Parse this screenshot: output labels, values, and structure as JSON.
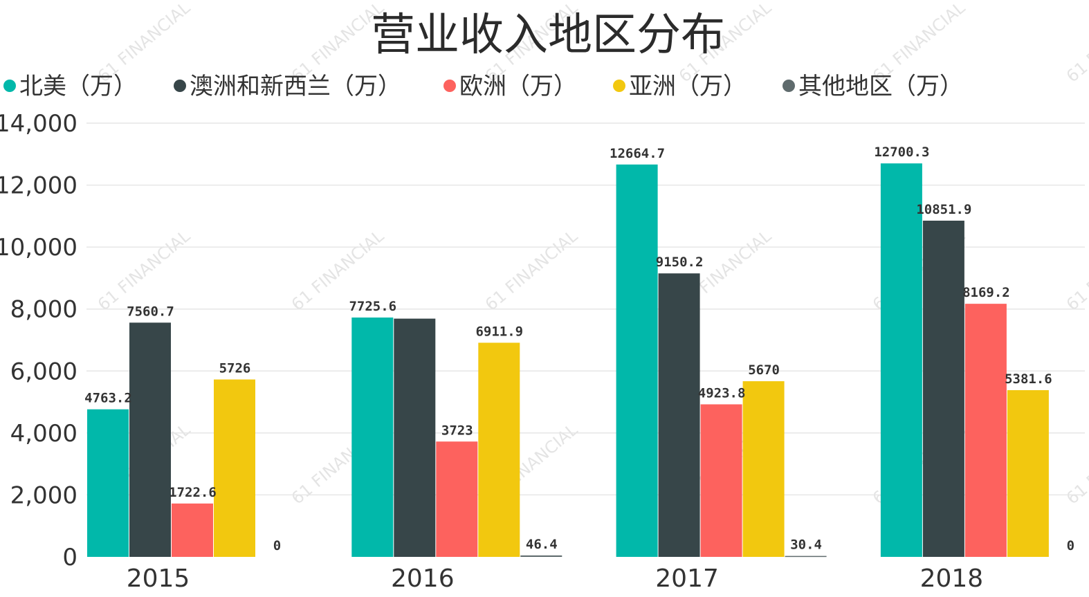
{
  "chart_data": {
    "type": "bar",
    "title": "营业收入地区分布",
    "watermark": "61 FINANCIAL",
    "categories": [
      "2015",
      "2016",
      "2017",
      "2018"
    ],
    "ylim": [
      0,
      14000
    ],
    "yticks": [
      "0",
      "2,000",
      "4,000",
      "6,000",
      "8,000",
      "10,000",
      "12,000",
      "14,000"
    ],
    "ytick_values": [
      0,
      2000,
      4000,
      6000,
      8000,
      10000,
      12000,
      14000
    ],
    "grid": true,
    "legend_position": "top",
    "series": [
      {
        "name": "北美（万）",
        "color": "#01b8aa",
        "values": [
          4763.2,
          7725.6,
          12664.7,
          12700.3
        ],
        "labels": [
          "4763.2",
          "7725.6",
          "12664.7",
          "12700.3"
        ]
      },
      {
        "name": "澳洲和新西兰（万）",
        "color": "#374649",
        "values": [
          7560.7,
          7690,
          9150.2,
          10851.9
        ],
        "labels": [
          "7560.7",
          "",
          "9150.2",
          "10851.9"
        ]
      },
      {
        "name": "欧洲（万）",
        "color": "#fd625e",
        "values": [
          1722.6,
          3723,
          4923.8,
          8169.2
        ],
        "labels": [
          "1722.6",
          "3723",
          "4923.8",
          "8169.2"
        ]
      },
      {
        "name": "亚洲（万）",
        "color": "#f2c80f",
        "values": [
          5726,
          6911.9,
          5670,
          5381.6
        ],
        "labels": [
          "5726",
          "6911.9",
          "5670",
          "5381.6"
        ]
      },
      {
        "name": "其他地区（万）",
        "color": "#5f6b6d",
        "values": [
          0,
          46.4,
          30.4,
          0
        ],
        "labels": [
          "0",
          "46.4",
          "30.4",
          "0"
        ]
      }
    ]
  }
}
